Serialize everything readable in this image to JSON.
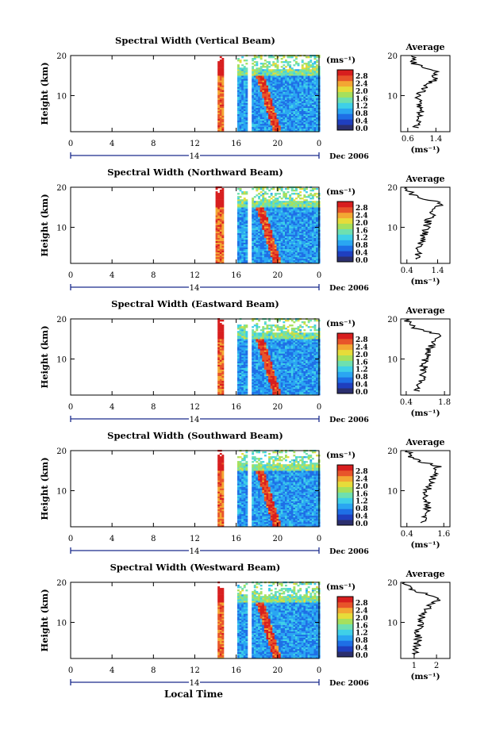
{
  "figure": {
    "xlabel": "Local Time",
    "date_label": "Dec 2006",
    "day_label": "14",
    "unit_label": "(ms⁻¹)"
  },
  "chart_data": [
    {
      "type": "heatmap",
      "title": "Spectral Width (Vertical Beam)",
      "ylabel": "Height (km)",
      "xticks": [
        "0",
        "4",
        "8",
        "12",
        "16",
        "20",
        "0"
      ],
      "xlim": [
        0,
        24
      ],
      "ylim": [
        1,
        20
      ],
      "yticks": [
        "10",
        "20"
      ],
      "colorbar": {
        "ticks": [
          "2.8",
          "2.4",
          "2.0",
          "1.6",
          "1.2",
          "0.8",
          "0.4",
          "0.0"
        ],
        "range": [
          0,
          3.0
        ]
      },
      "data_blocks_hours": [
        [
          14.2,
          14.8
        ],
        [
          16.1,
          17.0
        ],
        [
          17.5,
          24.0
        ]
      ],
      "profile": {
        "title": "Average",
        "xlabel": "(ms⁻¹)",
        "xticks": [
          "0.6",
          "1.4"
        ],
        "xlim": [
          0.4,
          1.8
        ],
        "heights_km": [
          2,
          4,
          6,
          8,
          10,
          12,
          14,
          16,
          18,
          20
        ],
        "values": [
          0.8,
          0.9,
          0.95,
          0.95,
          0.9,
          1.1,
          1.35,
          1.4,
          0.8,
          0.7
        ]
      }
    },
    {
      "type": "heatmap",
      "title": "Spectral Width (Northward Beam)",
      "ylabel": "Height (km)",
      "xticks": [
        "0",
        "4",
        "8",
        "12",
        "16",
        "20",
        "0"
      ],
      "xlim": [
        0,
        24
      ],
      "ylim": [
        1,
        20
      ],
      "yticks": [
        "10",
        "20"
      ],
      "colorbar": {
        "ticks": [
          "2.8",
          "2.4",
          "2.0",
          "1.6",
          "1.2",
          "0.8",
          "0.4",
          "0.0"
        ],
        "range": [
          0,
          3.0
        ]
      },
      "data_blocks_hours": [
        [
          14.0,
          14.8
        ],
        [
          16.1,
          17.0
        ],
        [
          17.5,
          24.0
        ]
      ],
      "profile": {
        "title": "Average",
        "xlabel": "(ms⁻¹)",
        "xticks": [
          "0.4",
          "1.4"
        ],
        "xlim": [
          0.2,
          1.8
        ],
        "heights_km": [
          2,
          4,
          6,
          8,
          10,
          12,
          14,
          16,
          18,
          20
        ],
        "values": [
          0.7,
          0.8,
          0.85,
          0.95,
          1.05,
          1.1,
          1.3,
          1.5,
          0.6,
          0.4
        ]
      }
    },
    {
      "type": "heatmap",
      "title": "Spectral Width (Eastward Beam)",
      "ylabel": "Height (km)",
      "xticks": [
        "0",
        "4",
        "8",
        "12",
        "16",
        "20",
        "0"
      ],
      "xlim": [
        0,
        24
      ],
      "ylim": [
        1,
        20
      ],
      "yticks": [
        "10",
        "20"
      ],
      "colorbar": {
        "ticks": [
          "2.8",
          "2.4",
          "2.0",
          "1.6",
          "1.2",
          "0.8",
          "0.4",
          "0.0"
        ],
        "range": [
          0,
          3.0
        ]
      },
      "data_blocks_hours": [
        [
          14.2,
          14.8
        ],
        [
          16.1,
          17.0
        ],
        [
          17.5,
          24.0
        ]
      ],
      "profile": {
        "title": "Average",
        "xlabel": "(ms⁻¹)",
        "xticks": [
          "0.4",
          "1.8"
        ],
        "xlim": [
          0.2,
          2.0
        ],
        "heights_km": [
          2,
          4,
          6,
          8,
          10,
          12,
          14,
          16,
          18,
          20
        ],
        "values": [
          0.8,
          0.9,
          1.0,
          1.05,
          1.1,
          1.2,
          1.4,
          1.6,
          0.6,
          0.4
        ]
      }
    },
    {
      "type": "heatmap",
      "title": "Spectral Width (Southward Beam)",
      "ylabel": "Height (km)",
      "xticks": [
        "0",
        "4",
        "8",
        "12",
        "16",
        "20",
        "0"
      ],
      "xlim": [
        0,
        24
      ],
      "ylim": [
        1,
        20
      ],
      "yticks": [
        "10",
        "20"
      ],
      "colorbar": {
        "ticks": [
          "2.8",
          "2.4",
          "2.0",
          "1.6",
          "1.2",
          "0.8",
          "0.4",
          "0.0"
        ],
        "range": [
          0,
          3.0
        ]
      },
      "data_blocks_hours": [
        [
          14.2,
          14.8
        ],
        [
          16.1,
          17.0
        ],
        [
          17.5,
          24.0
        ]
      ],
      "profile": {
        "title": "Average",
        "xlabel": "(ms⁻¹)",
        "xticks": [
          "0.4",
          "1.6"
        ],
        "xlim": [
          0.2,
          1.8
        ],
        "heights_km": [
          2,
          4,
          6,
          8,
          10,
          12,
          14,
          16,
          18,
          20
        ],
        "values": [
          0.9,
          1.0,
          1.1,
          1.0,
          1.05,
          1.15,
          1.35,
          1.4,
          0.6,
          0.4
        ]
      }
    },
    {
      "type": "heatmap",
      "title": "Spectral Width (Westward Beam)",
      "ylabel": "Height (km)",
      "xticks": [
        "0",
        "4",
        "8",
        "12",
        "16",
        "20",
        "0"
      ],
      "xlim": [
        0,
        24
      ],
      "ylim": [
        1,
        20
      ],
      "yticks": [
        "10",
        "20"
      ],
      "colorbar": {
        "ticks": [
          "2.8",
          "2.4",
          "2.0",
          "1.6",
          "1.2",
          "0.8",
          "0.4",
          "0.0"
        ],
        "range": [
          0,
          3.0
        ]
      },
      "data_blocks_hours": [
        [
          14.2,
          14.8
        ],
        [
          16.1,
          17.0
        ],
        [
          17.5,
          24.0
        ]
      ],
      "profile": {
        "title": "Average",
        "xlabel": "(ms⁻¹)",
        "xticks": [
          "1",
          "2"
        ],
        "xlim": [
          0.4,
          2.6
        ],
        "heights_km": [
          2,
          4,
          6,
          8,
          10,
          12,
          14,
          16,
          18,
          20
        ],
        "values": [
          1.0,
          1.1,
          1.2,
          1.15,
          1.3,
          1.4,
          1.7,
          2.1,
          1.0,
          0.6
        ]
      }
    }
  ]
}
